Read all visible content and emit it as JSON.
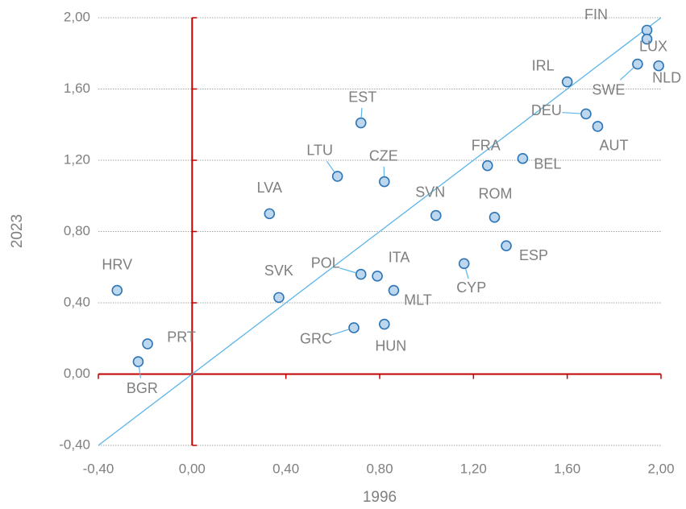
{
  "chart_data": {
    "type": "scatter",
    "x_label": "1996",
    "y_label": "2023",
    "labels": [
      "FIN",
      "LUX",
      "SWE",
      "NLD",
      "IRL",
      "DEU",
      "AUT",
      "BEL",
      "FRA",
      "EST",
      "LTU",
      "CZE",
      "LVA",
      "SVN",
      "ROM",
      "ESP",
      "CYP",
      "POL",
      "ITA",
      "MLT",
      "SVK",
      "HRV",
      "PRT",
      "BGR",
      "GRC",
      "HUN"
    ],
    "x": [
      1.94,
      1.94,
      1.9,
      1.99,
      1.6,
      1.68,
      1.73,
      1.41,
      1.26,
      0.72,
      0.62,
      0.82,
      0.33,
      1.04,
      1.29,
      1.34,
      1.16,
      0.72,
      0.79,
      0.86,
      0.37,
      -0.32,
      -0.19,
      -0.23,
      0.69,
      0.82
    ],
    "y": [
      1.93,
      1.88,
      1.74,
      1.73,
      1.64,
      1.46,
      1.39,
      1.21,
      1.17,
      1.41,
      1.11,
      1.08,
      0.9,
      0.89,
      0.88,
      0.72,
      0.62,
      0.56,
      0.55,
      0.47,
      0.43,
      0.47,
      0.17,
      0.07,
      0.26,
      0.28
    ],
    "color": "#bdd7ee",
    "edge_color": "#2e75b6",
    "diagonal_color": "#5bb5e8",
    "axis_color": "#c00000",
    "xlim": [
      -0.4,
      2.0
    ],
    "ylim": [
      -0.4,
      2.0
    ],
    "xticks": [
      {
        "value": -0.4,
        "label": "-0,40"
      },
      {
        "value": 0,
        "label": "0,00"
      },
      {
        "value": 0.4,
        "label": "0,40"
      },
      {
        "value": 0.8,
        "label": "0,80"
      },
      {
        "value": 1.2,
        "label": "1,20"
      },
      {
        "value": 1.6,
        "label": "1,60"
      },
      {
        "value": 2.0,
        "label": "2,00"
      }
    ],
    "yticks": [
      {
        "value": -0.4,
        "label": "-0,40"
      },
      {
        "value": 0,
        "label": "0,00"
      },
      {
        "value": 0.4,
        "label": "0,40"
      },
      {
        "value": 0.8,
        "label": "0,80"
      },
      {
        "value": 1.2,
        "label": "1,20"
      },
      {
        "value": 1.6,
        "label": "1,60"
      },
      {
        "value": 2.0,
        "label": "2,00"
      }
    ],
    "grid": true
  }
}
